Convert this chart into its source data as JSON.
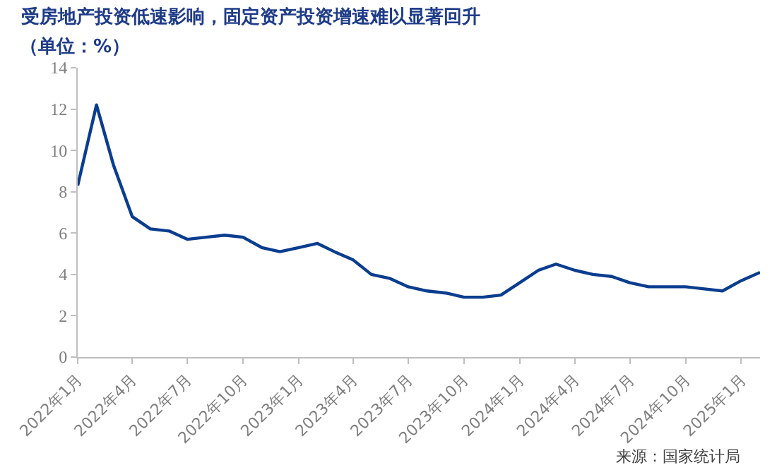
{
  "chart_data": {
    "type": "line",
    "title": "受房地产投资低速影响，固定资产投资增速难以显著回升",
    "subtitle": "（单位：%）",
    "x": [
      "2022-01",
      "2022-02",
      "2022-03",
      "2022-04",
      "2022-05",
      "2022-06",
      "2022-07",
      "2022-08",
      "2022-09",
      "2022-10",
      "2022-11",
      "2022-12",
      "2023-01",
      "2023-02",
      "2023-03",
      "2023-04",
      "2023-05",
      "2023-06",
      "2023-07",
      "2023-08",
      "2023-09",
      "2023-10",
      "2023-11",
      "2023-12",
      "2024-01",
      "2024-02",
      "2024-03",
      "2024-04",
      "2024-05",
      "2024-06",
      "2024-07",
      "2024-08",
      "2024-09",
      "2024-10",
      "2024-11",
      "2024-12",
      "2025-01",
      "2025-02"
    ],
    "series": [
      {
        "color": "#0a3d8f",
        "values": [
          8.3,
          12.2,
          9.3,
          6.8,
          6.2,
          6.1,
          5.7,
          5.8,
          5.9,
          5.8,
          5.3,
          5.1,
          5.3,
          5.5,
          5.1,
          4.7,
          4.0,
          3.8,
          3.4,
          3.2,
          3.1,
          2.9,
          2.9,
          3.0,
          3.6,
          4.2,
          4.5,
          4.2,
          4.0,
          3.9,
          3.6,
          3.4,
          3.4,
          3.4,
          3.3,
          3.2,
          3.7,
          4.1
        ]
      }
    ],
    "xlim": [
      "2022-01",
      "2025-02"
    ],
    "xticks": [
      {
        "value": "2022-01",
        "label": "2022年1月"
      },
      {
        "value": "2022-04",
        "label": "2022年4月"
      },
      {
        "value": "2022-07",
        "label": "2022年7月"
      },
      {
        "value": "2022-10",
        "label": "2022年10月"
      },
      {
        "value": "2023-01",
        "label": "2023年1月"
      },
      {
        "value": "2023-04",
        "label": "2023年4月"
      },
      {
        "value": "2023-07",
        "label": "2023年7月"
      },
      {
        "value": "2023-10",
        "label": "2023年10月"
      },
      {
        "value": "2024-01",
        "label": "2024年1月"
      },
      {
        "value": "2024-04",
        "label": "2024年4月"
      },
      {
        "value": "2024-07",
        "label": "2024年7月"
      },
      {
        "value": "2024-10",
        "label": "2024年10月"
      },
      {
        "value": "2025-01",
        "label": "2025年1月"
      }
    ],
    "ylim": [
      0,
      14
    ],
    "yticks": [
      0,
      2,
      4,
      6,
      8,
      10,
      12,
      14
    ],
    "marker": "none",
    "line_style": "solid",
    "annotations": [
      "来源：国家统计局"
    ]
  }
}
